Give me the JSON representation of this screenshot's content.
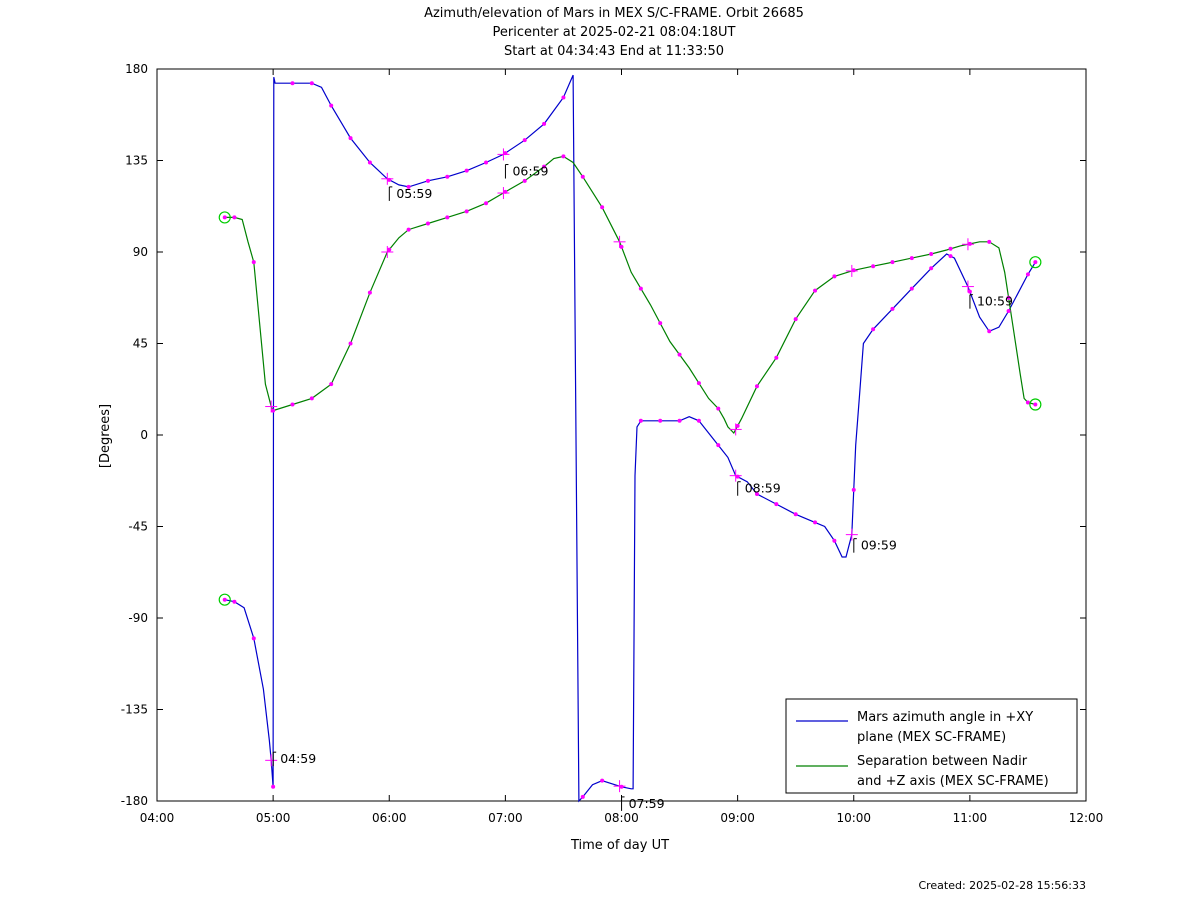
{
  "chart_data": {
    "type": "line",
    "title": "Azimuth/elevation of Mars in MEX S/C-FRAME.  Orbit 26685",
    "subtitle": "Pericenter at 2025-02-21 08:04:18UT",
    "subtitle2": "Start at 04:34:43 End at 11:33:50",
    "xlabel": "Time of day UT",
    "ylabel": "[Degrees]",
    "xlim": [
      "04:00",
      "12:00"
    ],
    "ylim": [
      -180,
      180
    ],
    "x_ticks": [
      "04:00",
      "05:00",
      "06:00",
      "07:00",
      "08:00",
      "09:00",
      "10:00",
      "11:00",
      "12:00"
    ],
    "y_ticks": [
      180,
      135,
      90,
      45,
      0,
      -45,
      -90,
      -135,
      -180
    ],
    "grid": false,
    "legend_position": "bottom-right",
    "series": [
      {
        "name": "Mars azimuth angle in +XY plane (MEX SC-FRAME)",
        "legend_line1": "Mars azimuth angle in +XY",
        "legend_line2": "plane (MEX SC-FRAME)",
        "color": "#0000cc",
        "points": [
          [
            "04:35",
            -81
          ],
          [
            "04:40",
            -82
          ],
          [
            "04:45",
            -85
          ],
          [
            "04:50",
            -100
          ],
          [
            "04:55",
            -125
          ],
          [
            "04:58",
            -150
          ],
          [
            "04:59",
            -160
          ],
          [
            "05:00",
            -173
          ],
          [
            "05:00:20",
            176
          ],
          [
            "05:01",
            173
          ],
          [
            "05:10",
            173
          ],
          [
            "05:20",
            173
          ],
          [
            "05:25",
            171
          ],
          [
            "05:30",
            162
          ],
          [
            "05:40",
            146
          ],
          [
            "05:50",
            134
          ],
          [
            "05:59",
            126
          ],
          [
            "06:05",
            123
          ],
          [
            "06:10",
            122
          ],
          [
            "06:20",
            125
          ],
          [
            "06:30",
            127
          ],
          [
            "06:40",
            130
          ],
          [
            "06:50",
            134
          ],
          [
            "06:59",
            138
          ],
          [
            "07:10",
            145
          ],
          [
            "07:20",
            153
          ],
          [
            "07:30",
            166
          ],
          [
            "07:35",
            177
          ],
          [
            "07:38",
            -180
          ],
          [
            "07:40",
            -178
          ],
          [
            "07:45",
            -172
          ],
          [
            "07:50",
            -170
          ],
          [
            "08:00",
            -173
          ],
          [
            "08:05",
            -174
          ],
          [
            "08:06",
            -174
          ],
          [
            "08:07",
            -20
          ],
          [
            "08:08",
            4
          ],
          [
            "08:10",
            7
          ],
          [
            "08:20",
            7
          ],
          [
            "08:30",
            7
          ],
          [
            "08:35",
            9
          ],
          [
            "08:40",
            7
          ],
          [
            "08:45",
            1
          ],
          [
            "08:50",
            -5
          ],
          [
            "08:55",
            -11
          ],
          [
            "08:59",
            -20
          ],
          [
            "09:05",
            -23
          ],
          [
            "09:10",
            -29
          ],
          [
            "09:20",
            -34
          ],
          [
            "09:30",
            -39
          ],
          [
            "09:40",
            -43
          ],
          [
            "09:45",
            -45
          ],
          [
            "09:50",
            -52
          ],
          [
            "09:54",
            -60
          ],
          [
            "09:56",
            -60
          ],
          [
            "09:59",
            -49
          ],
          [
            "10:01",
            -5
          ],
          [
            "10:03",
            20
          ],
          [
            "10:05",
            45
          ],
          [
            "10:10",
            52
          ],
          [
            "10:20",
            62
          ],
          [
            "10:30",
            72
          ],
          [
            "10:40",
            82
          ],
          [
            "10:48",
            89
          ],
          [
            "10:52",
            87
          ],
          [
            "10:59",
            73
          ],
          [
            "11:05",
            58
          ],
          [
            "11:10",
            51
          ],
          [
            "11:15",
            53
          ],
          [
            "11:20",
            61
          ],
          [
            "11:25",
            70
          ],
          [
            "11:30",
            79
          ],
          [
            "11:33:50",
            85
          ]
        ]
      },
      {
        "name": "Separation between Nadir and +Z axis (MEX SC-FRAME)",
        "legend_line1": "Separation between Nadir",
        "legend_line2": "and +Z axis (MEX SC-FRAME)",
        "color": "#008000",
        "points": [
          [
            "04:35",
            107
          ],
          [
            "04:40",
            107
          ],
          [
            "04:44",
            106
          ],
          [
            "04:47",
            95
          ],
          [
            "04:50",
            85
          ],
          [
            "04:53",
            55
          ],
          [
            "04:56",
            25
          ],
          [
            "04:59",
            14
          ],
          [
            "05:00",
            12
          ],
          [
            "05:10",
            15
          ],
          [
            "05:20",
            18
          ],
          [
            "05:30",
            25
          ],
          [
            "05:40",
            45
          ],
          [
            "05:50",
            70
          ],
          [
            "05:59",
            90
          ],
          [
            "06:05",
            97
          ],
          [
            "06:10",
            101
          ],
          [
            "06:20",
            104
          ],
          [
            "06:30",
            107
          ],
          [
            "06:40",
            110
          ],
          [
            "06:50",
            114
          ],
          [
            "06:59",
            119
          ],
          [
            "07:10",
            125
          ],
          [
            "07:20",
            132
          ],
          [
            "07:25",
            136
          ],
          [
            "07:30",
            137
          ],
          [
            "07:35",
            134
          ],
          [
            "07:40",
            127
          ],
          [
            "07:50",
            112
          ],
          [
            "07:59",
            95
          ],
          [
            "08:05",
            80
          ],
          [
            "08:15",
            64
          ],
          [
            "08:25",
            46
          ],
          [
            "08:35",
            33
          ],
          [
            "08:45",
            18
          ],
          [
            "08:50",
            13
          ],
          [
            "08:53",
            8
          ],
          [
            "08:55",
            4
          ],
          [
            "08:58",
            1
          ],
          [
            "09:02",
            8
          ],
          [
            "09:10",
            24
          ],
          [
            "09:20",
            38
          ],
          [
            "09:30",
            57
          ],
          [
            "09:40",
            71
          ],
          [
            "09:50",
            78
          ],
          [
            "10:00",
            81
          ],
          [
            "10:10",
            83
          ],
          [
            "10:20",
            85
          ],
          [
            "10:30",
            87
          ],
          [
            "10:40",
            89
          ],
          [
            "10:48",
            91
          ],
          [
            "10:55",
            93
          ],
          [
            "11:00",
            94
          ],
          [
            "11:05",
            95
          ],
          [
            "11:10",
            95
          ],
          [
            "11:15",
            92
          ],
          [
            "11:18",
            80
          ],
          [
            "11:22",
            55
          ],
          [
            "11:26",
            30
          ],
          [
            "11:28",
            18
          ],
          [
            "11:30",
            16
          ],
          [
            "11:33:50",
            15
          ]
        ]
      }
    ],
    "annotations": [
      {
        "label": "04:59",
        "x": "04:59",
        "y": -155
      },
      {
        "label": "05:59",
        "x": "05:59",
        "y": 123
      },
      {
        "label": "06:59",
        "x": "06:59",
        "y": 134
      },
      {
        "label": "07:59",
        "x": "07:59",
        "y": -177
      },
      {
        "label": "08:59",
        "x": "08:59",
        "y": -22
      },
      {
        "label": "09:59",
        "x": "09:59",
        "y": -50
      },
      {
        "label": "10:59",
        "x": "10:59",
        "y": 70
      }
    ],
    "colors": {
      "azimuth": "#0000cc",
      "separation": "#008000",
      "markers": "#ff00ff",
      "endpoints": "#00cc00"
    }
  },
  "footer": {
    "created": "Created: 2025-02-28 15:56:33"
  }
}
